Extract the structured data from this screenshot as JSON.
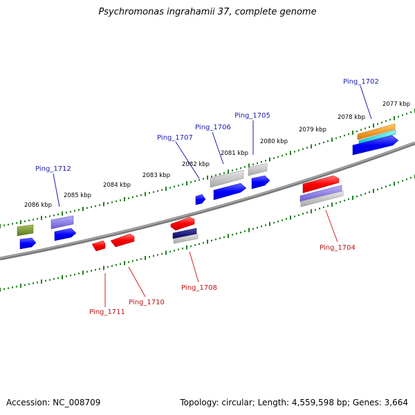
{
  "title": "Psychromonas ingrahamii 37, complete genome",
  "accession": "Accession: NC_008709",
  "topology": "Topology: circular; Length: 4,559,598 bp; Genes: 3,664",
  "colors": {
    "backbone": "#7a7a7a",
    "tick": "#1e7f1e",
    "upper_label": "#1a1aaa",
    "lower_label": "#bb1111",
    "scale_label": "#000000"
  },
  "scale_labels": [
    "2077 kbp",
    "2078 kbp",
    "2079 kbp",
    "2080 kbp",
    "2081 kbp",
    "2082 kbp",
    "2083 kbp",
    "2084 kbp",
    "2085 kbp",
    "2086 kbp"
  ],
  "upper_gene_labels": [
    "Ping_1702",
    "Ping_1705",
    "Ping_1706",
    "Ping_1707",
    "Ping_1712"
  ],
  "lower_gene_labels": [
    "Ping_1704",
    "Ping_1708",
    "Ping_1710",
    "Ping_1711"
  ]
}
